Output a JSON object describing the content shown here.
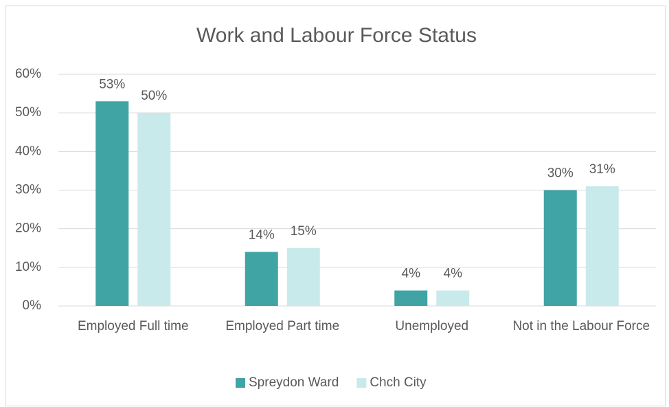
{
  "chart_data": {
    "type": "bar",
    "title": "Work and Labour Force Status",
    "categories": [
      "Employed Full time",
      "Employed Part time",
      "Unemployed",
      "Not in the Labour Force"
    ],
    "series": [
      {
        "name": "Spreydon Ward",
        "color": "#41a4a4",
        "values": [
          53,
          14,
          4,
          30
        ],
        "value_labels": [
          "53%",
          "14%",
          "4%",
          "30%"
        ]
      },
      {
        "name": "Chch City",
        "color": "#c9eaea",
        "values": [
          50,
          15,
          4,
          31
        ],
        "value_labels": [
          "50%",
          "15%",
          "4%",
          "31%"
        ]
      }
    ],
    "ylim": [
      0,
      60
    ],
    "yticks": [
      {
        "value": 0,
        "label": "0%"
      },
      {
        "value": 10,
        "label": "10%"
      },
      {
        "value": 20,
        "label": "20%"
      },
      {
        "value": 30,
        "label": "30%"
      },
      {
        "value": 40,
        "label": "40%"
      },
      {
        "value": 50,
        "label": "50%"
      },
      {
        "value": 60,
        "label": "60%"
      }
    ],
    "grid": true,
    "legend": "bottom"
  }
}
